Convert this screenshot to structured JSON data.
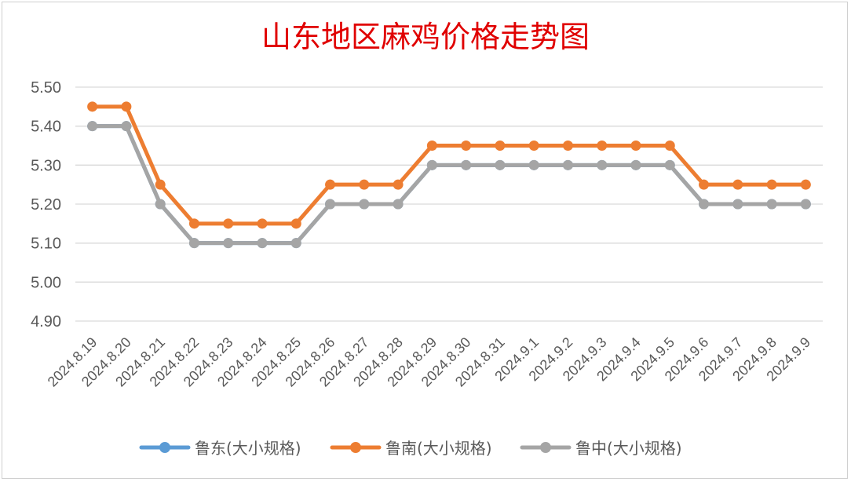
{
  "chart_data": {
    "type": "line",
    "title": "山东地区麻鸡价格走势图",
    "xlabel": "",
    "ylabel": "",
    "categories": [
      "2024.8.19",
      "2024.8.20",
      "2024.8.21",
      "2024.8.22",
      "2024.8.23",
      "2024.8.24",
      "2024.8.25",
      "2024.8.26",
      "2024.8.27",
      "2024.8.28",
      "2024.8.29",
      "2024.8.30",
      "2024.8.31",
      "2024.9.1",
      "2024.9.2",
      "2024.9.3",
      "2024.9.4",
      "2024.9.5",
      "2024.9.6",
      "2024.9.7",
      "2024.9.8",
      "2024.9.9"
    ],
    "ylim": [
      4.9,
      5.5
    ],
    "yticks": [
      "5.50",
      "5.40",
      "5.30",
      "5.20",
      "5.10",
      "5.00",
      "4.90"
    ],
    "grid": true,
    "legend_position": "bottom",
    "series": [
      {
        "name": "鲁东(大小规格)",
        "color": "#5b9bd5",
        "values": [
          5.4,
          5.4,
          5.2,
          5.1,
          5.1,
          5.1,
          5.1,
          5.2,
          5.2,
          5.2,
          5.3,
          5.3,
          5.3,
          5.3,
          5.3,
          5.3,
          5.3,
          5.3,
          5.2,
          5.2,
          5.2,
          5.2
        ]
      },
      {
        "name": "鲁南(大小规格)",
        "color": "#ed7d31",
        "values": [
          5.45,
          5.45,
          5.25,
          5.15,
          5.15,
          5.15,
          5.15,
          5.25,
          5.25,
          5.25,
          5.35,
          5.35,
          5.35,
          5.35,
          5.35,
          5.35,
          5.35,
          5.35,
          5.25,
          5.25,
          5.25,
          5.25
        ]
      },
      {
        "name": "鲁中(大小规格)",
        "color": "#a5a5a5",
        "values": [
          5.4,
          5.4,
          5.2,
          5.1,
          5.1,
          5.1,
          5.1,
          5.2,
          5.2,
          5.2,
          5.3,
          5.3,
          5.3,
          5.3,
          5.3,
          5.3,
          5.3,
          5.3,
          5.2,
          5.2,
          5.2,
          5.2
        ]
      }
    ]
  }
}
